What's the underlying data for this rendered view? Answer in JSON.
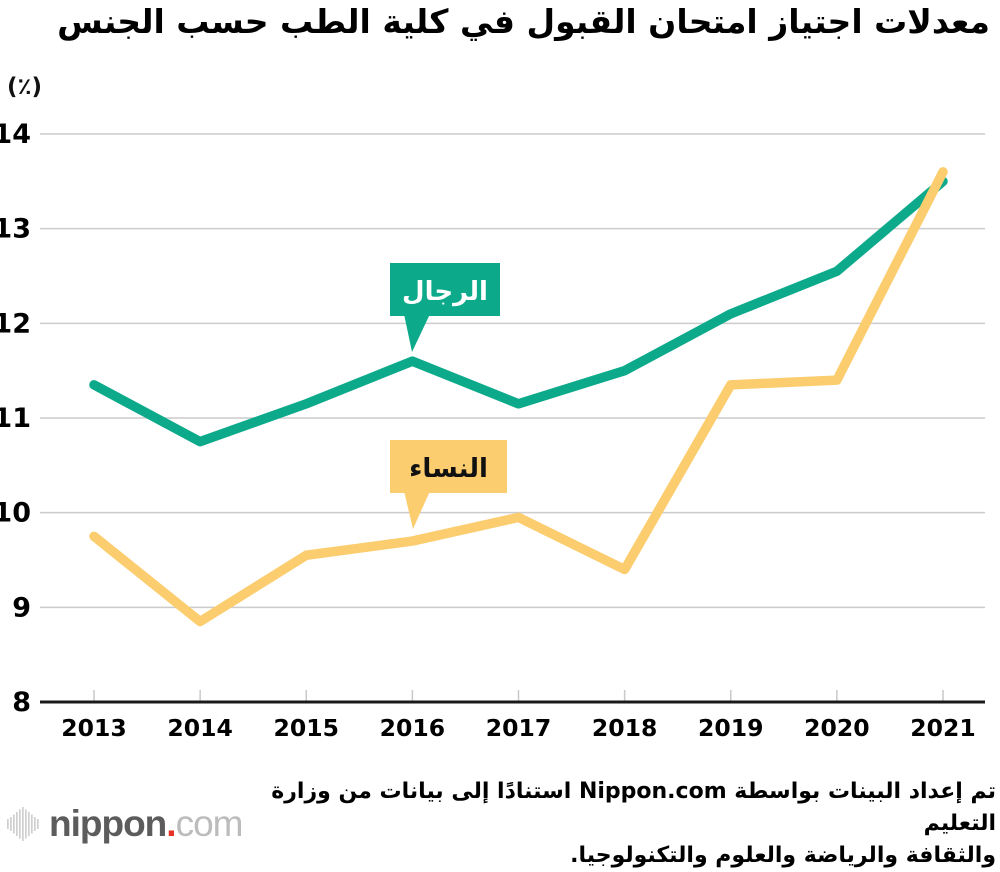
{
  "title": "معدلات اجتياز امتحان القبول في كلية الطب حسب الجنس",
  "unit_label": "(٪)",
  "chart_data": {
    "type": "line",
    "categories": [
      "2013",
      "2014",
      "2015",
      "2016",
      "2017",
      "2018",
      "2019",
      "2020",
      "2021"
    ],
    "series": [
      {
        "name": "men",
        "label": "الرجال",
        "color": "#0caa8b",
        "label_text_color": "#ffffff",
        "values": [
          11.35,
          10.75,
          11.15,
          11.6,
          11.15,
          11.5,
          12.1,
          12.55,
          13.5
        ]
      },
      {
        "name": "women",
        "label": "النساء",
        "color": "#fbcd6f",
        "label_text_color": "#111111",
        "values": [
          9.75,
          8.85,
          9.55,
          9.7,
          9.95,
          9.4,
          11.35,
          11.4,
          13.6
        ]
      }
    ],
    "ylabel": "(٪)",
    "ylim": [
      8,
      14
    ],
    "yticks": [
      8,
      9,
      10,
      11,
      12,
      13,
      14
    ],
    "grid": "horizontal",
    "layout": {
      "grid_color": "#cccccc",
      "tick_color": "#c9c9c9",
      "axis_color": "#1a1a1a",
      "tick_label_color": "#000000",
      "legend_position": "inline-callouts"
    }
  },
  "footer": {
    "attribution_line1": "تم إعداد البينات بواسطة Nippon.com استنادًا إلى بيانات من وزارة التعليم",
    "attribution_line2": "والثقافة والرياضة والعلوم والتكنولوجيا.",
    "logo": {
      "name": "nippon",
      "dot": ".",
      "tld": "com",
      "colors": {
        "bars": "#cfcfcf",
        "name": "#5c5c5c",
        "dot": "#e73323",
        "tld": "#bcbcbc"
      }
    }
  }
}
